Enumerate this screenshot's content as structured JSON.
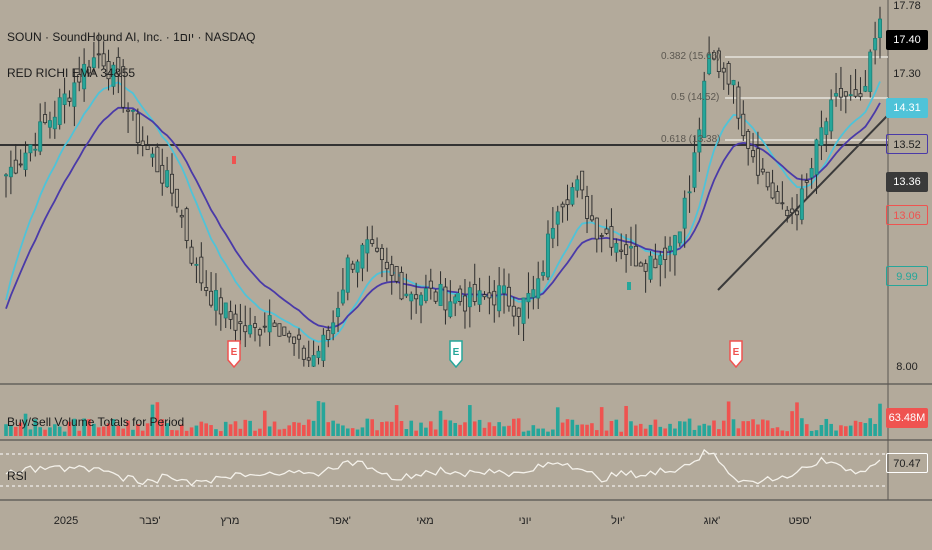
{
  "header": {
    "symbol_line": "SOUN · SoundHound AI, Inc. · 1יום · NASDAQ",
    "indicator_line": "RED RICHI EMA 34&55"
  },
  "volume_panel": {
    "label": "Buy/Sell Volume Totals for Period",
    "value_tag": "63.48M"
  },
  "rsi_panel": {
    "label": "RSI",
    "value_tag": "70.47"
  },
  "price_scale": {
    "tags": [
      {
        "value": "17.78",
        "style": "plain"
      },
      {
        "value": "17.40",
        "style": "black"
      },
      {
        "value": "17.30",
        "style": "plain"
      },
      {
        "value": "14.31",
        "style": "cyan"
      },
      {
        "value": "13.52",
        "style": "purple"
      },
      {
        "value": "13.36",
        "style": "dark"
      },
      {
        "value": "13.06",
        "style": "red"
      },
      {
        "value": "9.99",
        "style": "green"
      },
      {
        "value": "8.00",
        "style": "plain"
      }
    ]
  },
  "fib_levels": [
    {
      "label": "0.382 (15.66)"
    },
    {
      "label": "0.5 (14.52)"
    },
    {
      "label": "0.618 (13.38)"
    }
  ],
  "earnings_markers": [
    {
      "label": "E",
      "type": "negative"
    },
    {
      "label": "E",
      "type": "positive"
    },
    {
      "label": "E",
      "type": "negative"
    }
  ],
  "x_axis": {
    "labels": [
      "2025",
      "פבר'",
      "מרץ",
      "אפר'",
      "מאי",
      "יוני",
      "יול'",
      "אוג'",
      "ספט'"
    ]
  },
  "colors": {
    "background": "#b3aa9b",
    "up": "#26a69a",
    "down": "#3a3a3a",
    "ema_fast": "#4fc3d8",
    "ema_slow": "#4a3aa8",
    "volume_up": "#26a69a",
    "volume_down": "#ef5350"
  },
  "chart_data": {
    "type": "candlestick",
    "price_range": [
      8.0,
      17.78
    ],
    "last_close": 17.4,
    "approx_closes": [
      13.2,
      13.8,
      14.5,
      15.2,
      16.0,
      16.5,
      15.5,
      14.2,
      13.4,
      12.5,
      10.6,
      9.8,
      9.2,
      8.9,
      9.5,
      8.6,
      8.2,
      8.8,
      10.8,
      11.2,
      10.5,
      10.1,
      10.0,
      9.9,
      9.8,
      9.8,
      10.0,
      9.6,
      10.1,
      12.5,
      12.9,
      11.8,
      11.5,
      11.0,
      10.9,
      11.3,
      12.8,
      16.3,
      16.0,
      14.2,
      13.0,
      12.0,
      12.6,
      14.5,
      15.4,
      15.0,
      17.4
    ]
  }
}
